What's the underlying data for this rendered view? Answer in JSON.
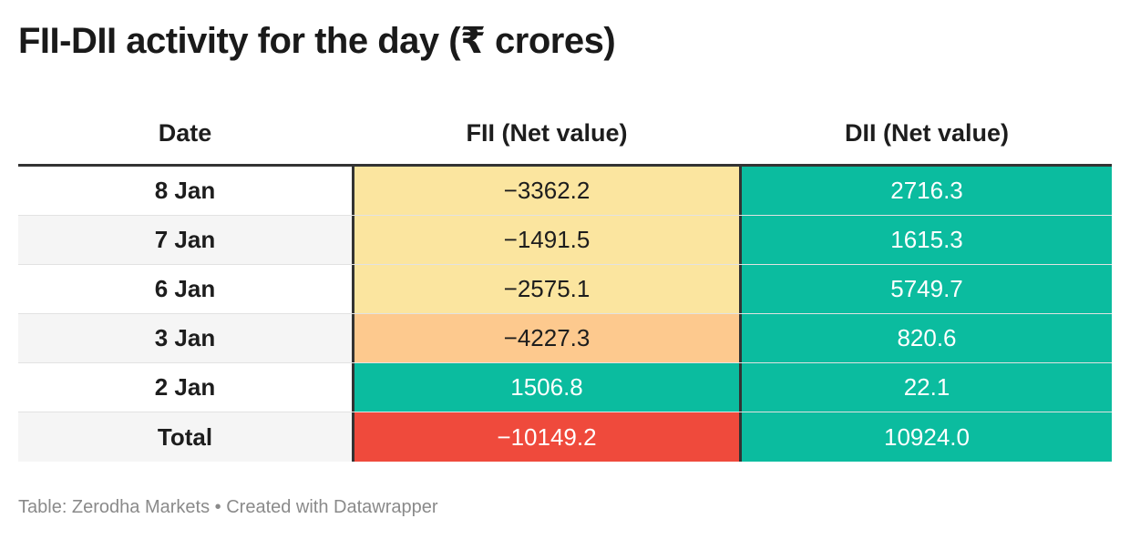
{
  "title": "FII-DII activity for the day (₹ crores)",
  "chart_data": {
    "type": "table",
    "title": "FII-DII activity for the day (₹ crores)",
    "columns": [
      "Date",
      "FII (Net value)",
      "DII (Net value)"
    ],
    "rows": [
      {
        "date": "8 Jan",
        "fii": "−3362.2",
        "dii": "2716.3"
      },
      {
        "date": "7 Jan",
        "fii": "−1491.5",
        "dii": "1615.3"
      },
      {
        "date": "6 Jan",
        "fii": "−2575.1",
        "dii": "5749.7"
      },
      {
        "date": "3 Jan",
        "fii": "−4227.3",
        "dii": "820.6"
      },
      {
        "date": "2 Jan",
        "fii": "1506.8",
        "dii": "22.1"
      },
      {
        "date": "Total",
        "fii": "−10149.2",
        "dii": "10924.0"
      }
    ],
    "fii_values": [
      -3362.2,
      -1491.5,
      -2575.1,
      -4227.3,
      1506.8,
      -10149.2
    ],
    "dii_values": [
      2716.3,
      1615.3,
      5749.7,
      820.6,
      22.1,
      10924.0
    ]
  },
  "colors": {
    "positive": "#0bbc9f",
    "light_negative": "#fbe59f",
    "medium_negative": "#fdc98e",
    "strong_negative": "#ef4a3c",
    "row_shade": "#f5f5f5",
    "row_plain": "#ffffff",
    "text_dark": "#1d1d1d",
    "text_light": "#ffffff"
  },
  "footer": "Table: Zerodha Markets • Created with Datawrapper"
}
